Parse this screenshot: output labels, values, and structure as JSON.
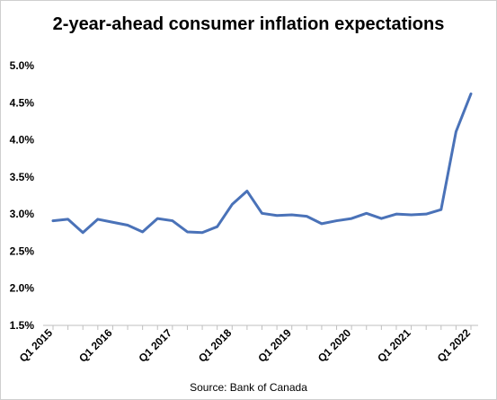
{
  "chart_data": {
    "type": "line",
    "title": "2-year-ahead consumer inflation expectations",
    "source": "Source:  Bank of Canada",
    "y_ticks": [
      "1.5%",
      "2.0%",
      "2.5%",
      "3.0%",
      "3.5%",
      "4.0%",
      "4.5%",
      "5.0%"
    ],
    "ylim": [
      1.5,
      5.0
    ],
    "x_tick_labels": [
      "Q1 2015",
      "Q1 2016",
      "Q1 2017",
      "Q1 2018",
      "Q1 2019",
      "Q1 2020",
      "Q1 2021",
      "Q1 2022"
    ],
    "x": [
      "Q1 2015",
      "Q2 2015",
      "Q3 2015",
      "Q4 2015",
      "Q1 2016",
      "Q2 2016",
      "Q3 2016",
      "Q4 2016",
      "Q1 2017",
      "Q2 2017",
      "Q3 2017",
      "Q4 2017",
      "Q1 2018",
      "Q2 2018",
      "Q3 2018",
      "Q4 2018",
      "Q1 2019",
      "Q2 2019",
      "Q3 2019",
      "Q4 2019",
      "Q1 2020",
      "Q2 2020",
      "Q3 2020",
      "Q4 2020",
      "Q1 2021",
      "Q2 2021",
      "Q3 2021",
      "Q4 2021",
      "Q1 2022"
    ],
    "series": [
      {
        "color": "#4a72b8",
        "values": [
          2.91,
          2.93,
          2.75,
          2.93,
          2.89,
          2.85,
          2.76,
          2.94,
          2.91,
          2.76,
          2.75,
          2.83,
          3.13,
          3.31,
          3.01,
          2.98,
          2.99,
          2.97,
          2.87,
          2.91,
          2.94,
          3.01,
          2.94,
          3.0,
          2.99,
          3.0,
          3.06,
          4.11,
          4.62
        ]
      }
    ],
    "grid": false,
    "legend": "none"
  }
}
